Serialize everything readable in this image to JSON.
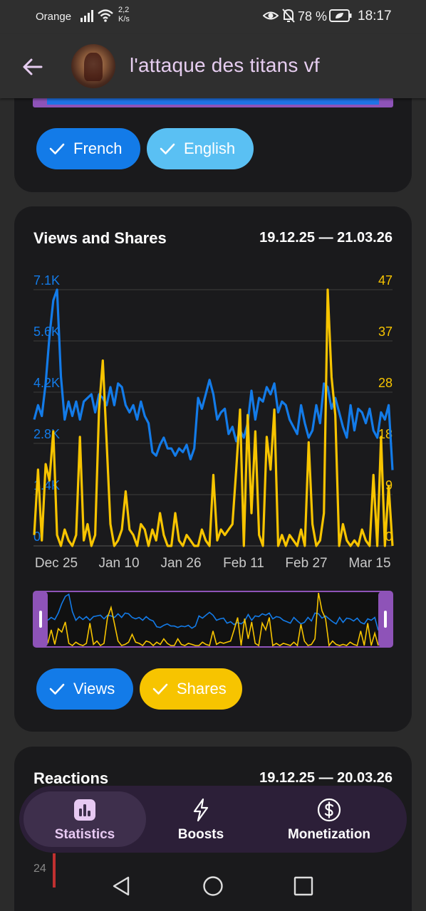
{
  "status_bar": {
    "carrier": "Orange",
    "speed_value": "2,2",
    "speed_unit": "K/s",
    "battery": "78 %",
    "time": "18:17"
  },
  "header": {
    "title": "l'attaque des titans vf"
  },
  "language_filter": {
    "chips": [
      {
        "label": "French",
        "selected": true,
        "color": "#137be8"
      },
      {
        "label": "English",
        "selected": true,
        "color": "#5ac0f3"
      }
    ]
  },
  "views_shares_card": {
    "title": "Views and Shares",
    "date_range": "19.12.25 — 21.03.26",
    "series_toggles": [
      {
        "label": "Views",
        "selected": true,
        "color": "#137be8"
      },
      {
        "label": "Shares",
        "selected": true,
        "color": "#f7c400"
      }
    ]
  },
  "chart_data": {
    "type": "line",
    "title": "Views and Shares",
    "x_tick_labels": [
      "Dec 25",
      "Jan 10",
      "Jan 26",
      "Feb 11",
      "Feb 27",
      "Mar 15"
    ],
    "x_start": "Dec 19",
    "x_end": "Mar 21",
    "y_left": {
      "ticks": [
        "0",
        "1.4K",
        "2.8K",
        "4.2K",
        "5.6K",
        "7.1K"
      ],
      "range": [
        0,
        7100
      ],
      "color": "#137be8"
    },
    "y_right": {
      "ticks": [
        "0",
        "9",
        "18",
        "28",
        "37",
        "47"
      ],
      "range": [
        0,
        47
      ],
      "color": "#f7c400"
    },
    "grid": true,
    "series": [
      {
        "name": "Views",
        "axis": "left",
        "color": "#137be8",
        "values": [
          3500,
          3900,
          3600,
          4500,
          5800,
          6800,
          7100,
          4700,
          3500,
          4000,
          3600,
          4000,
          3500,
          4000,
          4100,
          4200,
          3700,
          4200,
          4100,
          3900,
          4400,
          3900,
          4500,
          4400,
          3900,
          3700,
          3900,
          3500,
          4000,
          3600,
          3400,
          2600,
          2500,
          2800,
          3000,
          2700,
          2700,
          2500,
          2700,
          2600,
          2800,
          2400,
          2700,
          4100,
          3800,
          4200,
          4600,
          4200,
          3500,
          3700,
          3800,
          3100,
          3300,
          2900,
          3200,
          3000,
          3400,
          4300,
          3500,
          4100,
          4000,
          4400,
          4200,
          4500,
          3700,
          4000,
          3900,
          3500,
          3300,
          3100,
          3900,
          3400,
          3000,
          3200,
          3900,
          3400,
          4500,
          4400,
          3800,
          4100,
          3700,
          3300,
          3000,
          3900,
          3200,
          3800,
          3700,
          3400,
          3800,
          3200,
          3000,
          3700,
          3500,
          3900,
          2100
        ]
      },
      {
        "name": "Shares",
        "axis": "right",
        "color": "#f7c400",
        "values": [
          2,
          14,
          1,
          15,
          12,
          21,
          2,
          0,
          3,
          1,
          0,
          2,
          20,
          1,
          4,
          0,
          2,
          25,
          34,
          19,
          4,
          0,
          1,
          3,
          10,
          3,
          2,
          0,
          4,
          3,
          0,
          3,
          1,
          6,
          2,
          0,
          0,
          6,
          1,
          0,
          2,
          1,
          0,
          0,
          3,
          1,
          0,
          13,
          1,
          3,
          2,
          3,
          4,
          14,
          25,
          0,
          24,
          6,
          21,
          2,
          0,
          20,
          14,
          25,
          0,
          2,
          0,
          2,
          1,
          0,
          3,
          0,
          19,
          4,
          0,
          1,
          6,
          47,
          31,
          24,
          0,
          4,
          1,
          0,
          1,
          0,
          3,
          1,
          0,
          13,
          0,
          20,
          0,
          11,
          0
        ]
      }
    ]
  },
  "reactions_card": {
    "title": "Reactions",
    "date_range": "19.12.25 — 20.03.26",
    "visible_tick": "24"
  },
  "bottom_nav": {
    "items": [
      {
        "label": "Statistics",
        "icon": "bar-chart-icon",
        "active": true
      },
      {
        "label": "Boosts",
        "icon": "lightning-icon",
        "active": false
      },
      {
        "label": "Monetization",
        "icon": "dollar-coin-icon",
        "active": false
      }
    ]
  },
  "system_nav": {
    "buttons": [
      "back-triangle-icon",
      "home-circle-icon",
      "recents-square-icon"
    ]
  }
}
